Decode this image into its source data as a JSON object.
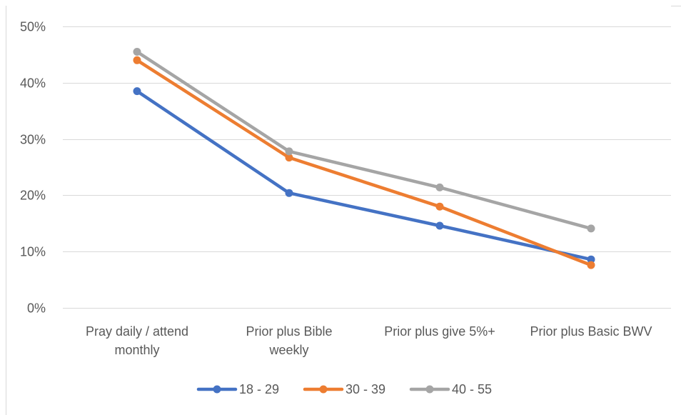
{
  "chart_data": {
    "type": "line",
    "title": "",
    "xlabel": "",
    "ylabel": "",
    "categories": [
      [
        "Pray daily / attend",
        "monthly"
      ],
      [
        "Prior plus Bible",
        "weekly"
      ],
      [
        "Prior plus give 5%+"
      ],
      [
        "Prior plus Basic BWV"
      ]
    ],
    "y_ticks": [
      "0%",
      "10%",
      "20%",
      "30%",
      "40%",
      "50%"
    ],
    "ylim": [
      0,
      50
    ],
    "y_unit": "%",
    "grid": true,
    "legend_position": "bottom",
    "series": [
      {
        "name": "18 - 29",
        "color": "#4472c4",
        "values": [
          38.5,
          20.4,
          14.6,
          8.6
        ]
      },
      {
        "name": "30 - 39",
        "color": "#ed7d31",
        "values": [
          44.0,
          26.7,
          18.0,
          7.6
        ]
      },
      {
        "name": "40 - 55",
        "color": "#a5a5a5",
        "values": [
          45.5,
          27.8,
          21.4,
          14.1
        ]
      }
    ]
  }
}
